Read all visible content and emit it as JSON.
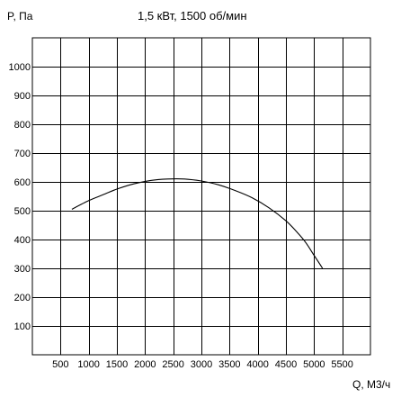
{
  "chart_data": {
    "type": "line",
    "title": "1,5 кВт, 1500 об/мин",
    "xlabel": "Q, М3/ч",
    "ylabel": "P, Па",
    "xlim": [
      0,
      6000
    ],
    "ylim": [
      0,
      1100
    ],
    "x_ticks": [
      "500",
      "1000",
      "1500",
      "2000",
      "2500",
      "3000",
      "3500",
      "4000",
      "4500",
      "5000",
      "5500"
    ],
    "x_tick_values": [
      500,
      1000,
      1500,
      2000,
      2500,
      3000,
      3500,
      4000,
      4500,
      5000,
      5500
    ],
    "y_ticks": [
      "100",
      "200",
      "300",
      "400",
      "500",
      "600",
      "700",
      "800",
      "900",
      "1000"
    ],
    "y_tick_values": [
      100,
      200,
      300,
      400,
      500,
      600,
      700,
      800,
      900,
      1000
    ],
    "grid": true,
    "series": [
      {
        "x": [
          700,
          1000,
          1250,
          1500,
          1800,
          2100,
          2400,
          2700,
          3000,
          3300,
          3600,
          3900,
          4200,
          4500,
          4700,
          4850,
          5000,
          5150
        ],
        "y": [
          505,
          535,
          555,
          575,
          593,
          605,
          610,
          610,
          603,
          590,
          570,
          545,
          510,
          465,
          425,
          390,
          345,
          300
        ]
      }
    ]
  }
}
